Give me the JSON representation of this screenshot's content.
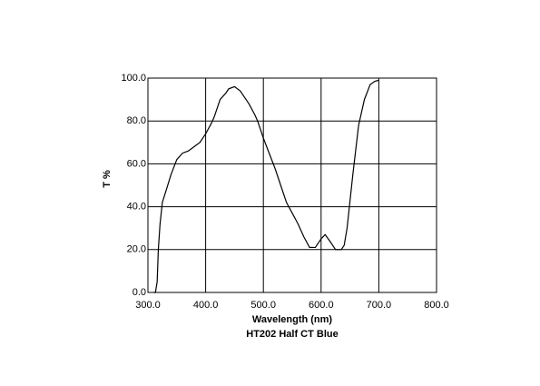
{
  "chart_data": {
    "type": "line",
    "title": "HT202 Half CT Blue",
    "xlabel": "Wavelength (nm)",
    "ylabel": "T %",
    "x": [
      310,
      313,
      316,
      318,
      321,
      325,
      332,
      340,
      350,
      360,
      370,
      380,
      390,
      400,
      410,
      415,
      425,
      435,
      440,
      450,
      460,
      470,
      475,
      485,
      490,
      500,
      510,
      520,
      530,
      540,
      550,
      560,
      570,
      580,
      590,
      600,
      607,
      615,
      625,
      635,
      640,
      645,
      655,
      665,
      675,
      685,
      693,
      700
    ],
    "series": [
      {
        "name": "T %",
        "color": "#000000",
        "values": [
          0,
          0,
          5,
          20,
          32,
          42,
          48,
          55,
          62,
          65,
          66,
          68,
          70,
          74,
          79,
          82,
          90,
          93,
          95,
          96,
          94,
          90,
          88,
          83,
          80,
          72,
          65,
          58,
          50,
          42,
          37,
          32,
          26,
          21,
          21,
          25,
          27,
          24,
          20,
          20,
          22,
          30,
          55,
          78,
          90,
          97,
          98.5,
          99
        ]
      }
    ],
    "xlim": [
      300,
      800
    ],
    "xticks": [
      {
        "value": 300,
        "label": "300.0"
      },
      {
        "value": 400,
        "label": "400.0"
      },
      {
        "value": 500,
        "label": "500.0"
      },
      {
        "value": 600,
        "label": "600.0"
      },
      {
        "value": 700,
        "label": "700.0"
      },
      {
        "value": 800,
        "label": "800.0"
      }
    ],
    "ylim": [
      0,
      100
    ],
    "yticks": [
      {
        "value": 0,
        "label": "0.0"
      },
      {
        "value": 20,
        "label": "20.0"
      },
      {
        "value": 40,
        "label": "40.0"
      },
      {
        "value": 60,
        "label": "60.0"
      },
      {
        "value": 80,
        "label": "80.0"
      },
      {
        "value": 100,
        "label": "100.0"
      }
    ],
    "grid": true
  }
}
